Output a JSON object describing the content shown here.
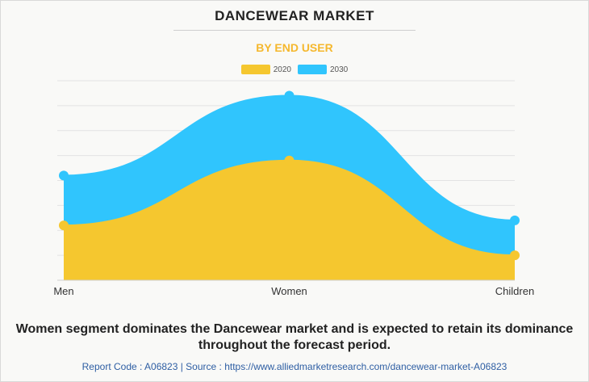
{
  "header": {
    "title": "DANCEWEAR MARKET",
    "subtitle": "BY END USER"
  },
  "colors": {
    "series_2020": "#f5c72f",
    "series_2030": "#30c5fd",
    "subtitle": "#f5b82e",
    "footer_link": "#2e5ea3"
  },
  "chart_data": {
    "type": "area",
    "categories": [
      "Men",
      "Women",
      "Children"
    ],
    "series": [
      {
        "name": "2020",
        "values": [
          22,
          48,
          10
        ]
      },
      {
        "name": "2030",
        "values": [
          42,
          74,
          24
        ]
      }
    ],
    "ylim": [
      0,
      80
    ],
    "grid": true,
    "legend": "top-center",
    "stacked": false
  },
  "caption": "Women segment dominates the Dancewear market and is expected to retain its dominance throughout the forecast period.",
  "footer": "Report Code : A06823  |  Source : https://www.alliedmarketresearch.com/dancewear-market-A06823"
}
